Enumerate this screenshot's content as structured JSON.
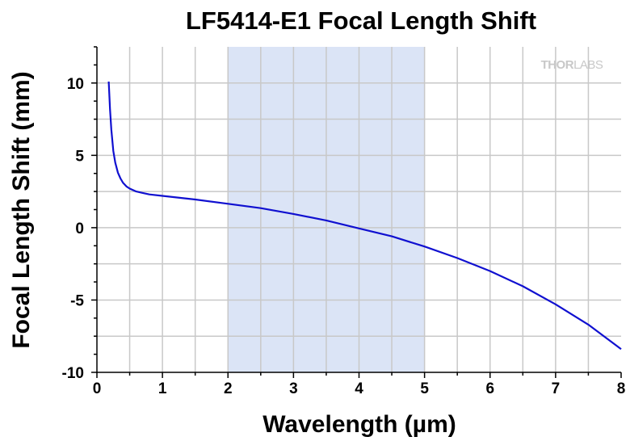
{
  "chart_data": {
    "type": "line",
    "title": "LF5414-E1 Focal Length Shift",
    "xlabel": "Wavelength (µm)",
    "ylabel": "Focal Length Shift (mm)",
    "xlim": [
      0,
      8
    ],
    "ylim": [
      -10,
      12.5
    ],
    "xticks": [
      "0",
      "1",
      "2",
      "3",
      "4",
      "5",
      "6",
      "7",
      "8"
    ],
    "yticks": [
      "10",
      "5",
      "0",
      "-5",
      "-10"
    ],
    "grid": true,
    "highlight_band": {
      "x": [
        2,
        5
      ],
      "color": "#dbe4f6"
    },
    "watermark": {
      "text_a": "THOR",
      "text_b": "LABS"
    },
    "series": [
      {
        "color": "#1010d0",
        "x": [
          0.18,
          0.2,
          0.22,
          0.25,
          0.28,
          0.32,
          0.36,
          0.4,
          0.45,
          0.5,
          0.6,
          0.7,
          0.8,
          1.0,
          1.5,
          2.0,
          2.5,
          3.0,
          3.5,
          4.0,
          4.5,
          5.0,
          5.5,
          6.0,
          6.5,
          7.0,
          7.5,
          8.0
        ],
        "y": [
          10.1,
          8.2,
          6.8,
          5.3,
          4.5,
          3.8,
          3.4,
          3.1,
          2.85,
          2.7,
          2.5,
          2.4,
          2.3,
          2.2,
          1.95,
          1.65,
          1.35,
          0.95,
          0.5,
          -0.05,
          -0.6,
          -1.3,
          -2.1,
          -3.0,
          -4.05,
          -5.3,
          -6.7,
          -8.4
        ]
      }
    ]
  }
}
